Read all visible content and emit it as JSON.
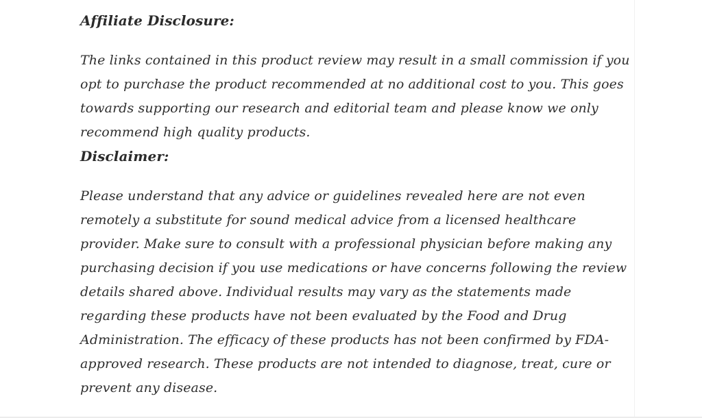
{
  "page": {
    "background_color": "#ffffff",
    "text_color": "#2e2e2e",
    "heading_color": "#2b2b2b",
    "divider_color": "#f0f0f0"
  },
  "article": {
    "sections": [
      {
        "heading": "Affiliate Disclosure:",
        "body": "The links contained in this product review may result in a small commission if you opt to purchase the product recommended at no additional cost to you. This goes towards supporting our research and editorial team and please know we only recommend high quality products."
      },
      {
        "heading": "Disclaimer:",
        "body": "Please understand that any advice or guidelines revealed here are not even remotely a substitute for sound medical advice from a licensed healthcare provider. Make sure to consult with a professional physician before making any purchasing decision if you use medications or have concerns following the review details shared above. Individual results may vary as the statements made regarding these products have not been evaluated by the Food and Drug Administration. The efficacy of these products has not been confirmed by FDA-approved research. These products are not intended to diagnose, treat, cure or prevent any disease."
      }
    ]
  }
}
